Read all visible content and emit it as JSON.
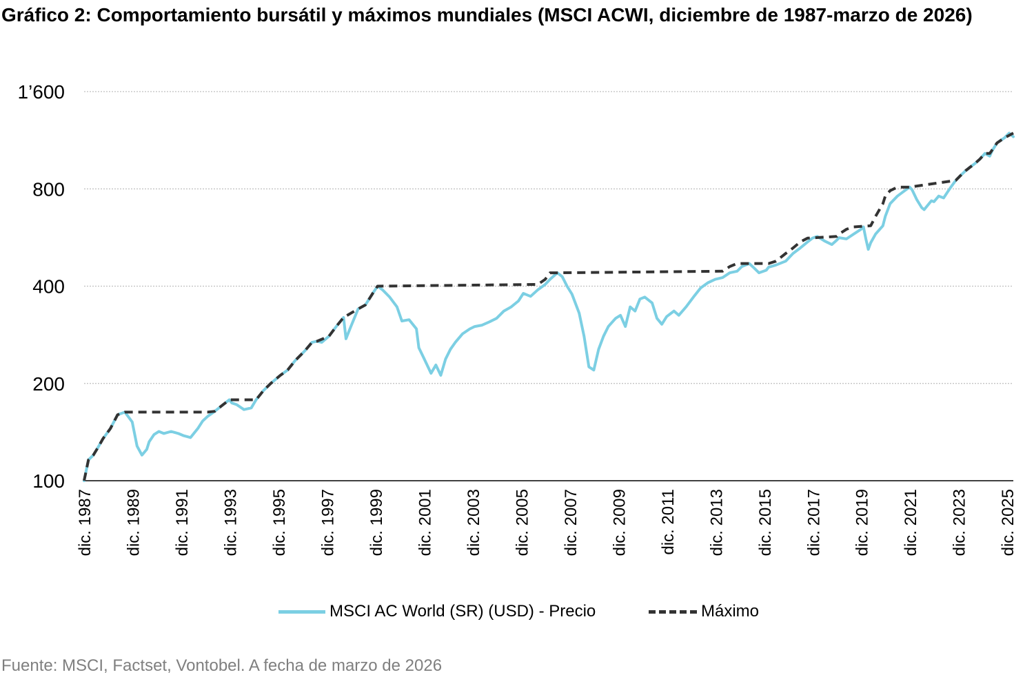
{
  "title": "Gráfico 2: Comportamiento bursátil y máximos mundiales (MSCI ACWI, diciembre de 1987-marzo de 2026)",
  "source": "Fuente: MSCI, Factset, Vontobel. A fecha de marzo de 2026",
  "colors": {
    "price": "#7ccfe3",
    "max": "#333333",
    "grid": "#bfbfbf"
  },
  "chart_data": {
    "type": "line",
    "title": "Gráfico 2: Comportamiento bursátil y máximos mundiales (MSCI ACWI, diciembre de 1987-marzo de 2026)",
    "y_scale": "log",
    "ylim": [
      100,
      1600
    ],
    "yticks": [
      100,
      200,
      400,
      800,
      1600
    ],
    "ytick_labels": [
      "100",
      "200",
      "400",
      "800",
      "1’600"
    ],
    "xlim": [
      1987.92,
      2026.17
    ],
    "xticks": [
      1987.92,
      1989.92,
      1991.92,
      1993.92,
      1995.92,
      1997.92,
      1999.92,
      2001.92,
      2003.92,
      2005.92,
      2007.92,
      2009.92,
      2011.92,
      2013.92,
      2015.92,
      2017.92,
      2019.92,
      2021.92,
      2023.92,
      2025.92
    ],
    "xtick_labels": [
      "dic. 1987",
      "dic. 1989",
      "dic. 1991",
      "dic. 1993",
      "dic. 1995",
      "dic. 1997",
      "dic. 1999",
      "dic. 2001",
      "dic. 2003",
      "dic. 2005",
      "dic. 2007",
      "dic. 2009",
      "dic. 2011",
      "dic. 2013",
      "dic. 2015",
      "dic. 2017",
      "dic. 2019",
      "dic. 2021",
      "dic. 2023",
      "dic. 2025"
    ],
    "grid": true,
    "legend_position": "bottom",
    "series": [
      {
        "name": "MSCI AC World (SR) (USD) - Precio",
        "style": "solid",
        "x": [
          1987.92,
          1988.1,
          1988.3,
          1988.5,
          1988.7,
          1989.0,
          1989.3,
          1989.6,
          1989.9,
          1990.1,
          1990.3,
          1990.5,
          1990.6,
          1990.8,
          1991.0,
          1991.2,
          1991.5,
          1991.8,
          1992.0,
          1992.3,
          1992.6,
          1992.8,
          1993.0,
          1993.3,
          1993.6,
          1993.9,
          1994.0,
          1994.2,
          1994.5,
          1994.8,
          1995.0,
          1995.3,
          1995.6,
          1996.0,
          1996.3,
          1996.6,
          1997.0,
          1997.3,
          1997.5,
          1997.7,
          1998.0,
          1998.3,
          1998.6,
          1998.7,
          1998.9,
          1999.2,
          1999.5,
          1999.8,
          2000.0,
          2000.2,
          2000.5,
          2000.8,
          2001.0,
          2001.3,
          2001.6,
          2001.7,
          2001.9,
          2002.2,
          2002.4,
          2002.6,
          2002.8,
          2003.0,
          2003.2,
          2003.5,
          2003.8,
          2004.0,
          2004.3,
          2004.6,
          2004.9,
          2005.2,
          2005.5,
          2005.8,
          2006.0,
          2006.3,
          2006.6,
          2006.9,
          2007.1,
          2007.4,
          2007.6,
          2007.8,
          2008.0,
          2008.3,
          2008.5,
          2008.7,
          2008.9,
          2009.1,
          2009.3,
          2009.5,
          2009.8,
          2010.0,
          2010.2,
          2010.4,
          2010.6,
          2010.8,
          2011.0,
          2011.3,
          2011.5,
          2011.7,
          2011.9,
          2012.2,
          2012.4,
          2012.7,
          2013.0,
          2013.3,
          2013.6,
          2013.9,
          2014.2,
          2014.5,
          2014.8,
          2015.0,
          2015.3,
          2015.5,
          2015.7,
          2016.0,
          2016.1,
          2016.4,
          2016.8,
          2017.1,
          2017.4,
          2017.7,
          2017.9,
          2018.1,
          2018.4,
          2018.7,
          2018.9,
          2019.0,
          2019.3,
          2019.6,
          2019.9,
          2020.0,
          2020.1,
          2020.2,
          2020.3,
          2020.5,
          2020.8,
          2020.9,
          2021.1,
          2021.4,
          2021.7,
          2021.9,
          2022.0,
          2022.2,
          2022.4,
          2022.5,
          2022.7,
          2022.8,
          2022.9,
          2023.1,
          2023.3,
          2023.5,
          2023.6,
          2023.8,
          2024.0,
          2024.2,
          2024.4,
          2024.6,
          2024.8,
          2025.0,
          2025.2,
          2025.3,
          2025.5,
          2025.8,
          2026.0,
          2026.17
        ],
        "y": [
          100,
          116,
          120,
          127,
          135,
          145,
          160,
          163,
          152,
          128,
          120,
          125,
          132,
          139,
          142,
          140,
          142,
          140,
          138,
          136,
          145,
          153,
          158,
          164,
          171,
          178,
          174,
          172,
          166,
          168,
          178,
          190,
          200,
          212,
          220,
          235,
          252,
          268,
          270,
          268,
          280,
          300,
          320,
          275,
          300,
          340,
          350,
          380,
          400,
          390,
          370,
          345,
          312,
          315,
          295,
          258,
          240,
          215,
          228,
          212,
          238,
          255,
          268,
          285,
          295,
          300,
          303,
          310,
          318,
          335,
          345,
          360,
          380,
          372,
          390,
          405,
          420,
          440,
          428,
          400,
          378,
          330,
          280,
          225,
          220,
          255,
          280,
          300,
          318,
          325,
          300,
          345,
          335,
          365,
          370,
          355,
          318,
          305,
          322,
          335,
          325,
          345,
          370,
          395,
          410,
          420,
          425,
          440,
          445,
          460,
          470,
          455,
          440,
          448,
          458,
          465,
          478,
          505,
          525,
          548,
          563,
          570,
          552,
          538,
          555,
          565,
          560,
          580,
          600,
          610,
          560,
          520,
          545,
          580,
          615,
          658,
          720,
          760,
          790,
          810,
          796,
          740,
          700,
          690,
          720,
          735,
          730,
          760,
          750,
          790,
          810,
          850,
          880,
          910,
          935,
          960,
          990,
          1030,
          1010,
          1050,
          1110,
          1150,
          1190,
          1160
        ]
      },
      {
        "name": "Máximo",
        "style": "dashed",
        "x": [
          1987.92,
          1988.1,
          1988.3,
          1988.5,
          1988.7,
          1989.0,
          1989.3,
          1989.6,
          1992.8,
          1993.0,
          1993.3,
          1993.6,
          1993.9,
          1994.0,
          1995.0,
          1995.3,
          1995.6,
          1996.0,
          1996.3,
          1996.6,
          1997.0,
          1997.3,
          1997.5,
          1998.0,
          1998.3,
          1998.6,
          1999.2,
          1999.5,
          1999.8,
          2000.0,
          2006.6,
          2006.9,
          2007.1,
          2007.4,
          2014.2,
          2014.5,
          2014.8,
          2015.0,
          2016.1,
          2016.4,
          2016.8,
          2017.1,
          2017.4,
          2017.7,
          2018.9,
          2019.0,
          2019.3,
          2019.6,
          2020.3,
          2020.5,
          2020.8,
          2020.9,
          2021.1,
          2021.4,
          2021.7,
          2021.9,
          2023.8,
          2024.0,
          2024.2,
          2024.4,
          2024.6,
          2024.8,
          2025.0,
          2025.2,
          2025.5,
          2025.8,
          2026.17
        ],
        "y": [
          100,
          116,
          120,
          127,
          135,
          145,
          160,
          163,
          163,
          163,
          164,
          171,
          178,
          178,
          178,
          190,
          200,
          212,
          220,
          235,
          252,
          268,
          270,
          280,
          300,
          320,
          340,
          350,
          380,
          400,
          405,
          420,
          440,
          440,
          445,
          460,
          470,
          470,
          470,
          478,
          505,
          525,
          548,
          563,
          570,
          580,
          600,
          610,
          615,
          658,
          720,
          760,
          790,
          810,
          810,
          810,
          850,
          880,
          910,
          935,
          960,
          990,
          1030,
          1030,
          1110,
          1150,
          1190
        ]
      }
    ]
  },
  "legend": [
    {
      "label": "MSCI AC World (SR) (USD) - Precio",
      "icon": "solid-line"
    },
    {
      "label": "Máximo",
      "icon": "dashed-line"
    }
  ]
}
